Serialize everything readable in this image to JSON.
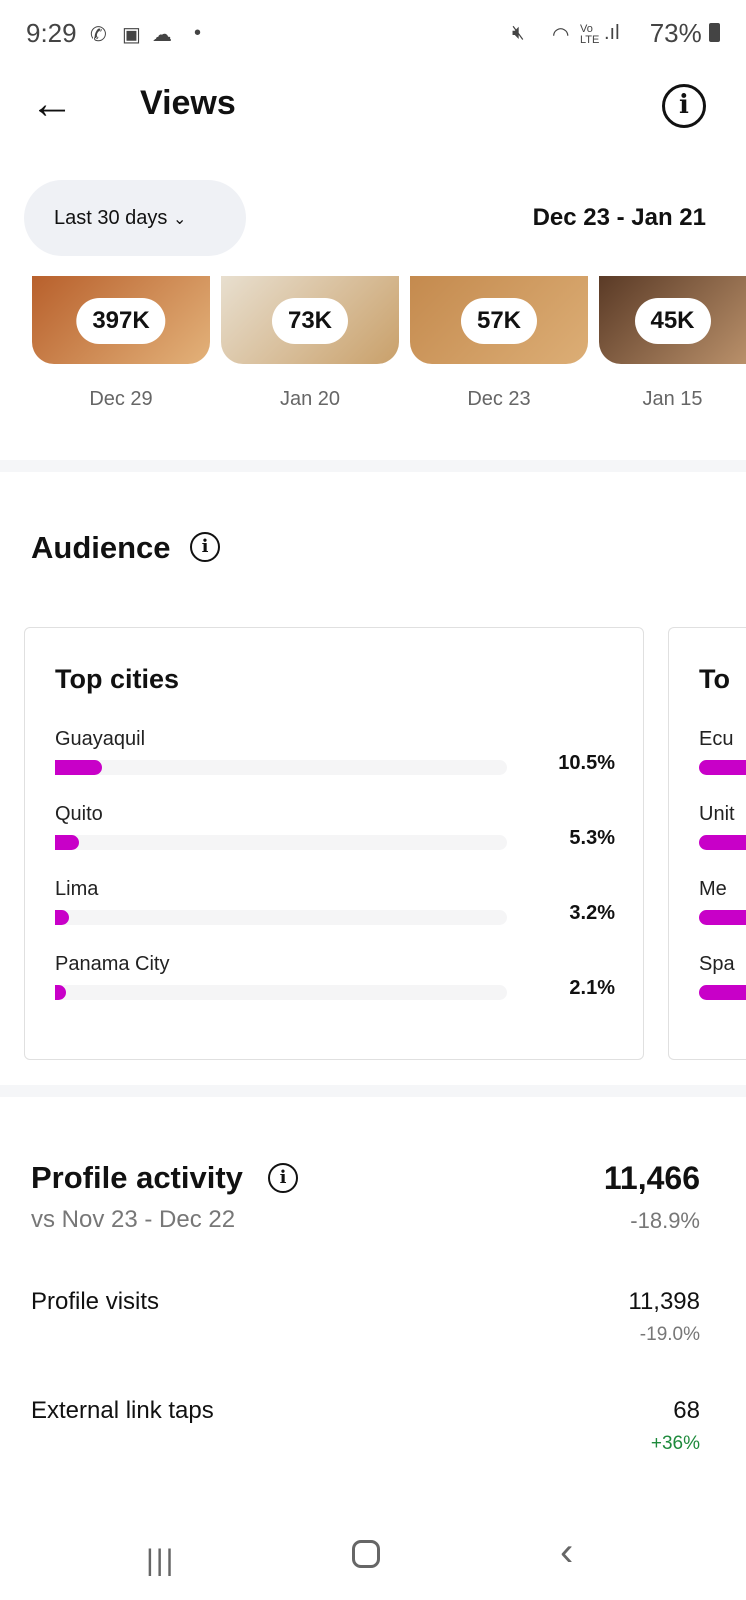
{
  "status_bar": {
    "time": "9:29",
    "battery": "73%",
    "icons": [
      "whatsapp-icon",
      "gallery-icon",
      "cloud-icon",
      "dot-icon",
      "mute-icon",
      "wifi-icon",
      "volte-icon",
      "signal-icon",
      "battery-icon"
    ]
  },
  "header": {
    "title": "Views",
    "back_icon": "arrow-left-icon",
    "info_icon": "info-icon"
  },
  "filter": {
    "label": "Last 30 days",
    "date_range": "Dec 23 - Jan 21"
  },
  "top_content": [
    {
      "views": "397K",
      "date": "Dec 29",
      "colors": [
        "#b8602c",
        "#e3b27a"
      ]
    },
    {
      "views": "73K",
      "date": "Jan 20",
      "colors": [
        "#e8dfcf",
        "#c9a06a"
      ]
    },
    {
      "views": "57K",
      "date": "Dec 23",
      "colors": [
        "#c48a4e",
        "#dcae76"
      ]
    },
    {
      "views": "45K",
      "date": "Jan 15",
      "colors": [
        "#5a3a26",
        "#b9906a"
      ]
    }
  ],
  "audience": {
    "title": "Audience",
    "top_cities": {
      "title": "Top cities",
      "bar_color": "#c800c8",
      "items": [
        {
          "name": "Guayaquil",
          "value": "10.5%",
          "fraction": 0.105
        },
        {
          "name": "Quito",
          "value": "5.3%",
          "fraction": 0.053
        },
        {
          "name": "Lima",
          "value": "3.2%",
          "fraction": 0.032
        },
        {
          "name": "Panama City",
          "value": "2.1%",
          "fraction": 0.021
        }
      ]
    },
    "second_card": {
      "title": "To",
      "items": [
        "Ecu",
        "Unit",
        "Me",
        "Spa"
      ]
    }
  },
  "profile_activity": {
    "title": "Profile activity",
    "comparison": "vs Nov 23 - Dec 22",
    "total": "11,466",
    "total_change": "-18.9%",
    "metrics": [
      {
        "label": "Profile visits",
        "value": "11,398",
        "change": "-19.0%"
      },
      {
        "label": "External link taps",
        "value": "68",
        "change": "+36%",
        "change_color": "#1e8a3c"
      }
    ]
  },
  "nav_bar": {
    "recents": "|||",
    "home": "home-icon",
    "back": "back-icon"
  }
}
